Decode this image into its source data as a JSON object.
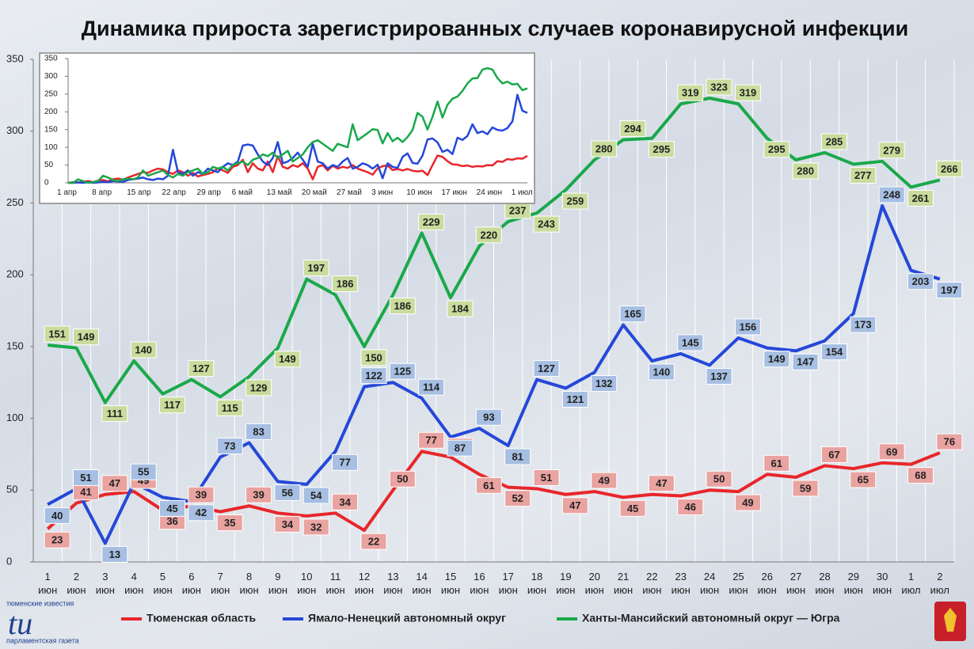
{
  "chart_data": [
    {
      "type": "line",
      "title": "Динамика прироста зарегистрированных случаев коронавирусной инфекции",
      "categories": [
        "1 июн",
        "2 июн",
        "3 июн",
        "4 июн",
        "5 июн",
        "6 июн",
        "7 июн",
        "8 июн",
        "9 июн",
        "10 июн",
        "11 июн",
        "12 июн",
        "13 июн",
        "14 июн",
        "15 июн",
        "16 июн",
        "17 июн",
        "18 июн",
        "19 июн",
        "20 июн",
        "21 июн",
        "22 июн",
        "23 июн",
        "24 июн",
        "25 июн",
        "26 июн",
        "27 июн",
        "28 июн",
        "29 июн",
        "30 июн",
        "1 июл",
        "2 июл"
      ],
      "series": [
        {
          "name": "Тюменская область",
          "color": "#e8262b",
          "label_color": "#e9a3a0",
          "values": [
            23,
            41,
            47,
            49,
            36,
            39,
            35,
            39,
            34,
            32,
            34,
            22,
            50,
            77,
            73,
            61,
            52,
            51,
            47,
            49,
            45,
            47,
            46,
            50,
            49,
            61,
            59,
            67,
            65,
            69,
            68,
            76
          ]
        },
        {
          "name": "Ямало-Ненецкий автономный округ",
          "color": "#2548d8",
          "label_color": "#a6bfe2",
          "values": [
            40,
            51,
            13,
            55,
            45,
            42,
            73,
            83,
            56,
            54,
            77,
            122,
            125,
            114,
            87,
            93,
            81,
            127,
            121,
            132,
            165,
            140,
            145,
            137,
            156,
            149,
            147,
            154,
            173,
            248,
            203,
            197
          ]
        },
        {
          "name": "Ханты-Мансийский автономный округ — Югра",
          "color": "#1aa84a",
          "label_color": "#c9dc9d",
          "values": [
            151,
            149,
            111,
            140,
            117,
            127,
            115,
            129,
            149,
            197,
            186,
            150,
            186,
            229,
            184,
            220,
            237,
            243,
            259,
            280,
            294,
            295,
            319,
            323,
            319,
            295,
            280,
            285,
            277,
            279,
            261,
            266
          ]
        }
      ],
      "ylim": [
        0,
        350
      ],
      "yticks": [
        0,
        50,
        100,
        150,
        200,
        250,
        300,
        350
      ],
      "grid": true
    },
    {
      "type": "line",
      "categories": [
        "1 апр",
        null,
        null,
        null,
        null,
        null,
        null,
        "8 апр",
        null,
        null,
        null,
        null,
        null,
        null,
        "15 апр",
        null,
        null,
        null,
        null,
        null,
        null,
        "22 апр",
        null,
        null,
        null,
        null,
        null,
        null,
        "29 апр",
        null,
        null,
        null,
        null,
        null,
        null,
        "6 май",
        null,
        null,
        null,
        null,
        null,
        null,
        "13 май",
        null,
        null,
        null,
        null,
        null,
        null,
        "20 май",
        null,
        null,
        null,
        null,
        null,
        null,
        "27 май",
        null,
        null,
        null,
        null,
        null,
        null,
        "3 июн",
        null,
        null,
        null,
        null,
        null,
        null,
        "10 июн",
        null,
        null,
        null,
        null,
        null,
        null,
        "17 июн",
        null,
        null,
        null,
        null,
        null,
        null,
        "24 июн",
        null,
        null,
        null,
        null,
        null,
        null,
        "1 июл",
        null
      ],
      "series": [
        {
          "color": "#e8262b",
          "values": [
            0,
            2,
            1,
            3,
            5,
            2,
            6,
            8,
            4,
            10,
            12,
            9,
            15,
            20,
            25,
            30,
            28,
            35,
            40,
            38,
            30,
            25,
            35,
            30,
            20,
            28,
            18,
            22,
            25,
            30,
            40,
            35,
            28,
            45,
            50,
            65,
            30,
            55,
            40,
            35,
            60,
            30,
            75,
            45,
            40,
            50,
            45,
            55,
            40,
            10,
            45,
            50,
            35,
            48,
            40,
            45,
            42,
            50,
            40,
            35,
            30,
            23,
            41,
            47,
            49,
            36,
            39,
            35,
            39,
            34,
            32,
            34,
            22,
            50,
            77,
            73,
            61,
            52,
            51,
            47,
            49,
            45,
            47,
            46,
            50,
            49,
            61,
            59,
            67,
            65,
            69,
            68,
            76
          ]
        },
        {
          "color": "#2548d8",
          "values": [
            0,
            0,
            1,
            0,
            2,
            0,
            1,
            3,
            2,
            5,
            4,
            3,
            8,
            10,
            12,
            15,
            10,
            8,
            12,
            10,
            20,
            93,
            30,
            25,
            35,
            20,
            30,
            25,
            40,
            35,
            30,
            45,
            55,
            50,
            60,
            105,
            108,
            105,
            80,
            60,
            50,
            70,
            115,
            55,
            60,
            70,
            85,
            65,
            45,
            110,
            60,
            55,
            40,
            50,
            45,
            60,
            70,
            40,
            45,
            55,
            50,
            40,
            51,
            13,
            55,
            45,
            42,
            73,
            83,
            56,
            54,
            77,
            122,
            125,
            114,
            87,
            93,
            81,
            127,
            121,
            132,
            165,
            140,
            145,
            137,
            156,
            149,
            147,
            154,
            173,
            248,
            203,
            197
          ]
        },
        {
          "color": "#1aa84a",
          "values": [
            0,
            0,
            10,
            5,
            0,
            2,
            5,
            20,
            15,
            8,
            5,
            10,
            12,
            10,
            15,
            35,
            20,
            25,
            30,
            35,
            22,
            15,
            25,
            20,
            30,
            35,
            40,
            25,
            30,
            45,
            40,
            45,
            35,
            50,
            55,
            60,
            50,
            65,
            70,
            80,
            75,
            85,
            70,
            80,
            90,
            60,
            70,
            80,
            100,
            115,
            120,
            110,
            100,
            90,
            110,
            105,
            100,
            165,
            120,
            130,
            140,
            151,
            149,
            111,
            140,
            117,
            127,
            115,
            129,
            149,
            197,
            186,
            150,
            186,
            229,
            184,
            220,
            237,
            243,
            259,
            280,
            294,
            295,
            319,
            323,
            319,
            295,
            280,
            285,
            277,
            279,
            261,
            266
          ]
        }
      ],
      "ylim": [
        0,
        350
      ],
      "yticks": [
        0,
        50,
        100,
        150,
        200,
        250,
        300,
        350
      ]
    }
  ],
  "logo": {
    "top": "тюменские известия",
    "mark": "tu",
    "bottom": "парламентская газета"
  }
}
